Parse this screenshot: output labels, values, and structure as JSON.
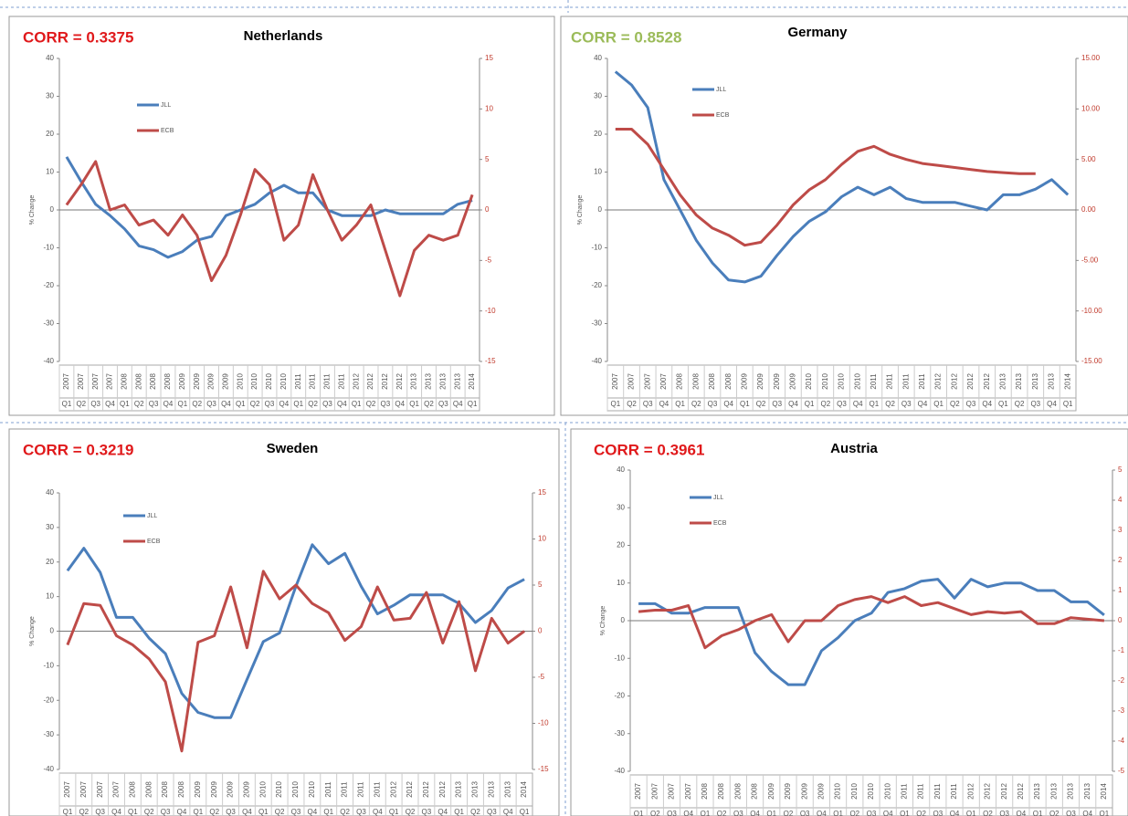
{
  "chart_data": [
    {
      "type": "line",
      "title": "Netherlands",
      "annotation": "CORR = 0.3375",
      "annotation_color": "#e0191b",
      "ylabel": "% Change",
      "categories": [
        [
          "2007",
          "Q1"
        ],
        [
          "2007",
          "Q2"
        ],
        [
          "2007",
          "Q3"
        ],
        [
          "2007",
          "Q4"
        ],
        [
          "2008",
          "Q1"
        ],
        [
          "2008",
          "Q2"
        ],
        [
          "2008",
          "Q3"
        ],
        [
          "2008",
          "Q4"
        ],
        [
          "2009",
          "Q1"
        ],
        [
          "2009",
          "Q2"
        ],
        [
          "2009",
          "Q3"
        ],
        [
          "2009",
          "Q4"
        ],
        [
          "2010",
          "Q1"
        ],
        [
          "2010",
          "Q2"
        ],
        [
          "2010",
          "Q3"
        ],
        [
          "2010",
          "Q4"
        ],
        [
          "2011",
          "Q1"
        ],
        [
          "2011",
          "Q2"
        ],
        [
          "2011",
          "Q3"
        ],
        [
          "2011",
          "Q4"
        ],
        [
          "2012",
          "Q1"
        ],
        [
          "2012",
          "Q2"
        ],
        [
          "2012",
          "Q3"
        ],
        [
          "2012",
          "Q4"
        ],
        [
          "2013",
          "Q1"
        ],
        [
          "2013",
          "Q2"
        ],
        [
          "2013",
          "Q3"
        ],
        [
          "2013",
          "Q4"
        ],
        [
          "2014",
          "Q1"
        ]
      ],
      "series": [
        {
          "name": "JLL",
          "color": "#4a7ebb",
          "values": [
            14,
            7.5,
            1.5,
            -1.5,
            -5,
            -9.5,
            -10.5,
            -12.5,
            -11,
            -8,
            -7,
            -1.5,
            0,
            1.5,
            4.5,
            6.5,
            4.5,
            4.5,
            0,
            -1.5,
            -1.5,
            -1.5,
            0,
            -1,
            -1,
            -1,
            -1,
            1.5,
            2.5
          ]
        },
        {
          "name": "ECB",
          "color": "#be4b48",
          "axis": "y2",
          "values": [
            0.5,
            2.5,
            4.8,
            0,
            0.5,
            -1.5,
            -1,
            -2.5,
            -0.5,
            -2.5,
            -7,
            -4.5,
            -0.5,
            4,
            2.5,
            -3,
            -1.5,
            3.5,
            0,
            -3,
            -1.5,
            0.5,
            -4,
            -8.5,
            -4,
            -2.5,
            -3,
            -2.5,
            1.5
          ]
        }
      ],
      "ylim": [
        -40,
        40
      ],
      "yticks": [
        -40,
        -30,
        -20,
        -10,
        0,
        10,
        20,
        30,
        40
      ],
      "y2lim": [
        -15,
        15
      ],
      "y2ticks": [
        -15,
        -10,
        -5,
        0,
        5,
        10,
        15
      ]
    },
    {
      "type": "line",
      "title": "Germany",
      "annotation": "CORR = 0.8528",
      "annotation_color": "#9bbb59",
      "ylabel": "% Change",
      "categories": [
        [
          "2007",
          "Q1"
        ],
        [
          "2007",
          "Q2"
        ],
        [
          "2007",
          "Q3"
        ],
        [
          "2007",
          "Q4"
        ],
        [
          "2008",
          "Q1"
        ],
        [
          "2008",
          "Q2"
        ],
        [
          "2008",
          "Q3"
        ],
        [
          "2008",
          "Q4"
        ],
        [
          "2009",
          "Q1"
        ],
        [
          "2009",
          "Q2"
        ],
        [
          "2009",
          "Q3"
        ],
        [
          "2009",
          "Q4"
        ],
        [
          "2010",
          "Q1"
        ],
        [
          "2010",
          "Q2"
        ],
        [
          "2010",
          "Q3"
        ],
        [
          "2010",
          "Q4"
        ],
        [
          "2011",
          "Q1"
        ],
        [
          "2011",
          "Q2"
        ],
        [
          "2011",
          "Q3"
        ],
        [
          "2011",
          "Q4"
        ],
        [
          "2012",
          "Q1"
        ],
        [
          "2012",
          "Q2"
        ],
        [
          "2012",
          "Q3"
        ],
        [
          "2012",
          "Q4"
        ],
        [
          "2013",
          "Q1"
        ],
        [
          "2013",
          "Q2"
        ],
        [
          "2013",
          "Q3"
        ],
        [
          "2013",
          "Q4"
        ],
        [
          "2014",
          "Q1"
        ]
      ],
      "series": [
        {
          "name": "JLL",
          "color": "#4a7ebb",
          "values": [
            36.5,
            33,
            27,
            8,
            0,
            -8,
            -14,
            -18.5,
            -19,
            -17.5,
            -12,
            -7,
            -3,
            -0.5,
            3.5,
            6,
            4,
            6,
            3,
            2,
            2,
            2,
            1,
            0,
            4,
            4,
            5.5,
            8,
            4
          ]
        },
        {
          "name": "ECB",
          "color": "#be4b48",
          "axis": "y2",
          "values": [
            8,
            8,
            6.5,
            4,
            1.5,
            -0.5,
            -1.8,
            -2.5,
            -3.5,
            -3.2,
            -1.5,
            0.5,
            2,
            3,
            4.5,
            5.8,
            6.3,
            5.5,
            5,
            4.6,
            4.4,
            4.2,
            4,
            3.8,
            3.7,
            3.6,
            3.6,
            null,
            null
          ]
        }
      ],
      "ylim": [
        -40,
        40
      ],
      "yticks": [
        -40,
        -30,
        -20,
        -10,
        0,
        10,
        20,
        30,
        40
      ],
      "y2lim": [
        -15,
        15
      ],
      "y2ticks": [
        {
          "value": -15,
          "label": "-15.00"
        },
        {
          "value": -10,
          "label": "-10.00"
        },
        {
          "value": -5,
          "label": "-5.00"
        },
        {
          "value": 0,
          "label": "0.00"
        },
        {
          "value": 5,
          "label": "5.00"
        },
        {
          "value": 10,
          "label": "10.00"
        },
        {
          "value": 15,
          "label": "15.00"
        }
      ]
    },
    {
      "type": "line",
      "title": "Sweden",
      "annotation": "CORR = 0.3219",
      "annotation_color": "#e0191b",
      "ylabel": "% Change",
      "categories": [
        [
          "2007",
          "Q1"
        ],
        [
          "2007",
          "Q2"
        ],
        [
          "2007",
          "Q3"
        ],
        [
          "2007",
          "Q4"
        ],
        [
          "2008",
          "Q1"
        ],
        [
          "2008",
          "Q2"
        ],
        [
          "2008",
          "Q3"
        ],
        [
          "2008",
          "Q4"
        ],
        [
          "2009",
          "Q1"
        ],
        [
          "2009",
          "Q2"
        ],
        [
          "2009",
          "Q3"
        ],
        [
          "2009",
          "Q4"
        ],
        [
          "2010",
          "Q1"
        ],
        [
          "2010",
          "Q2"
        ],
        [
          "2010",
          "Q3"
        ],
        [
          "2010",
          "Q4"
        ],
        [
          "2011",
          "Q1"
        ],
        [
          "2011",
          "Q2"
        ],
        [
          "2011",
          "Q3"
        ],
        [
          "2011",
          "Q4"
        ],
        [
          "2012",
          "Q1"
        ],
        [
          "2012",
          "Q2"
        ],
        [
          "2012",
          "Q3"
        ],
        [
          "2012",
          "Q4"
        ],
        [
          "2013",
          "Q1"
        ],
        [
          "2013",
          "Q2"
        ],
        [
          "2013",
          "Q3"
        ],
        [
          "2013",
          "Q4"
        ],
        [
          "2014",
          "Q1"
        ]
      ],
      "series": [
        {
          "name": "JLL",
          "color": "#4a7ebb",
          "values": [
            17.5,
            24,
            17,
            4,
            4,
            -2,
            -6.5,
            -18,
            -23.5,
            -25,
            -25,
            -14,
            -3,
            -0.5,
            13,
            25,
            19.5,
            22.5,
            13,
            5,
            7.5,
            10.5,
            10.5,
            10.5,
            8,
            2.5,
            6,
            12.5,
            15
          ]
        },
        {
          "name": "ECB",
          "color": "#be4b48",
          "axis": "y2",
          "values": [
            -1.5,
            3,
            2.8,
            -0.5,
            -1.5,
            -3,
            -5.5,
            -13,
            -1.2,
            -0.5,
            4.8,
            -1.8,
            6.5,
            3.5,
            5,
            3,
            2,
            -1,
            0.5,
            4.8,
            1.2,
            1.4,
            4.2,
            -1.3,
            3.2,
            -4.3,
            1.4,
            -1.3,
            0
          ]
        }
      ],
      "ylim": [
        -40,
        40
      ],
      "yticks": [
        -40,
        -30,
        -20,
        -10,
        0,
        10,
        20,
        30,
        40
      ],
      "y2lim": [
        -15,
        15
      ],
      "y2ticks": [
        -15,
        -10,
        -5,
        0,
        5,
        10,
        15
      ]
    },
    {
      "type": "line",
      "title": "Austria",
      "annotation": "CORR = 0.3961",
      "annotation_color": "#e0191b",
      "ylabel": "% Change",
      "categories": [
        [
          "2007",
          "Q1"
        ],
        [
          "2007",
          "Q2"
        ],
        [
          "2007",
          "Q3"
        ],
        [
          "2007",
          "Q4"
        ],
        [
          "2008",
          "Q1"
        ],
        [
          "2008",
          "Q2"
        ],
        [
          "2008",
          "Q3"
        ],
        [
          "2008",
          "Q4"
        ],
        [
          "2009",
          "Q1"
        ],
        [
          "2009",
          "Q2"
        ],
        [
          "2009",
          "Q3"
        ],
        [
          "2009",
          "Q4"
        ],
        [
          "2010",
          "Q1"
        ],
        [
          "2010",
          "Q2"
        ],
        [
          "2010",
          "Q3"
        ],
        [
          "2010",
          "Q4"
        ],
        [
          "2011",
          "Q1"
        ],
        [
          "2011",
          "Q2"
        ],
        [
          "2011",
          "Q3"
        ],
        [
          "2011",
          "Q4"
        ],
        [
          "2012",
          "Q1"
        ],
        [
          "2012",
          "Q2"
        ],
        [
          "2012",
          "Q3"
        ],
        [
          "2012",
          "Q4"
        ],
        [
          "2013",
          "Q1"
        ],
        [
          "2013",
          "Q2"
        ],
        [
          "2013",
          "Q3"
        ],
        [
          "2013",
          "Q4"
        ],
        [
          "2014",
          "Q1"
        ]
      ],
      "series": [
        {
          "name": "JLL",
          "color": "#4a7ebb",
          "values": [
            4.5,
            4.5,
            2,
            2,
            3.5,
            3.5,
            3.5,
            -8.5,
            -13.5,
            -17,
            -17,
            -8,
            -4.5,
            0,
            2,
            7.5,
            8.5,
            10.5,
            11,
            6,
            11,
            9,
            10,
            10,
            8,
            8,
            5,
            5,
            1.5
          ]
        },
        {
          "name": "ECB",
          "color": "#be4b48",
          "axis": "y2",
          "values": [
            0.3,
            0.35,
            0.35,
            0.5,
            -0.9,
            -0.5,
            -0.3,
            0,
            0.2,
            -0.7,
            0,
            0,
            0.5,
            0.7,
            0.8,
            0.6,
            0.8,
            0.5,
            0.6,
            0.4,
            0.2,
            0.3,
            0.25,
            0.3,
            -0.1,
            -0.1,
            0.1,
            0.05,
            0
          ]
        }
      ],
      "ylim": [
        -40,
        40
      ],
      "yticks": [
        -40,
        -30,
        -20,
        -10,
        0,
        10,
        20,
        30,
        40
      ],
      "y2lim": [
        -5,
        5
      ],
      "y2ticks": [
        -5,
        -4,
        -3,
        -2,
        -1,
        0,
        1,
        2,
        3,
        4,
        5
      ]
    }
  ]
}
